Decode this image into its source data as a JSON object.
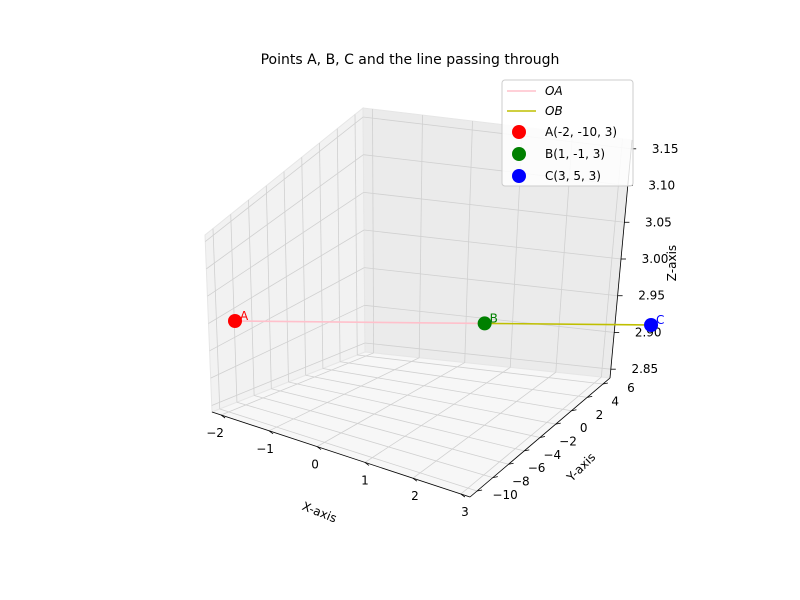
{
  "chart_data": {
    "type": "scatter3d",
    "title": "Points A, B, C and the line passing through",
    "xlabel": "X-axis",
    "ylabel": "Y-axis",
    "zlabel": "Z-axis",
    "x_ticks": [
      "−2",
      "−1",
      "0",
      "1",
      "2",
      "3"
    ],
    "y_ticks": [
      "−10",
      "−8",
      "−6",
      "−4",
      "−2",
      "0",
      "2",
      "4",
      "6"
    ],
    "z_ticks": [
      "2.85",
      "2.90",
      "2.95",
      "3.00",
      "3.05",
      "3.10",
      "3.15"
    ],
    "grid": true,
    "legend_position": "top-right",
    "points": [
      {
        "label": "A",
        "legend": "A(-2, -10, 3)",
        "x": -2,
        "y": -10,
        "z": 3,
        "color": "#ff0000"
      },
      {
        "label": "B",
        "legend": "B(1, -1, 3)",
        "x": 1,
        "y": -1,
        "z": 3,
        "color": "#008000"
      },
      {
        "label": "C",
        "legend": "C(3, 5, 3)",
        "x": 3,
        "y": 5,
        "z": 3,
        "color": "#0000ff"
      }
    ],
    "lines": [
      {
        "legend": "OA",
        "from": "A",
        "to": "B",
        "color": "#ffc0cb"
      },
      {
        "legend": "OB",
        "from": "B",
        "to": "C",
        "color": "#bfbf00"
      }
    ]
  }
}
